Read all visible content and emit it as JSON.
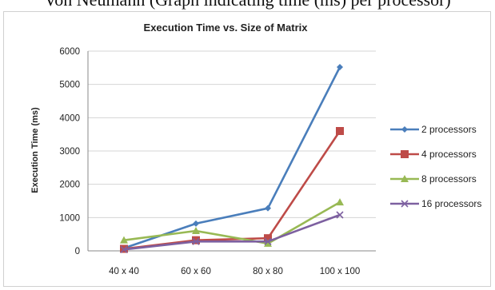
{
  "caption": "Von Neumann (Graph indicating time (ms) per processor)",
  "chart_data": {
    "type": "line",
    "title": "Execution Time vs. Size of Matrix",
    "xlabel": "",
    "ylabel": "Execution Time (ms)",
    "categories": [
      "40 x 40",
      "60 x 60",
      "80 x 80",
      "100 x 100"
    ],
    "ylim": [
      0,
      6000
    ],
    "yticks": [
      0,
      1000,
      2000,
      3000,
      4000,
      5000,
      6000
    ],
    "grid": "horizontal",
    "legend": "right",
    "series": [
      {
        "name": "2 processors",
        "color": "#4a7ebb",
        "marker": "diamond",
        "values": [
          80,
          820,
          1280,
          5520
        ]
      },
      {
        "name": "4 processors",
        "color": "#be4b48",
        "marker": "square",
        "values": [
          60,
          320,
          380,
          3600
        ]
      },
      {
        "name": "8 processors",
        "color": "#98b954",
        "marker": "triangle",
        "values": [
          320,
          600,
          220,
          1460
        ]
      },
      {
        "name": "16 processors",
        "color": "#7d60a0",
        "marker": "x",
        "values": [
          40,
          280,
          280,
          1080
        ]
      }
    ]
  }
}
